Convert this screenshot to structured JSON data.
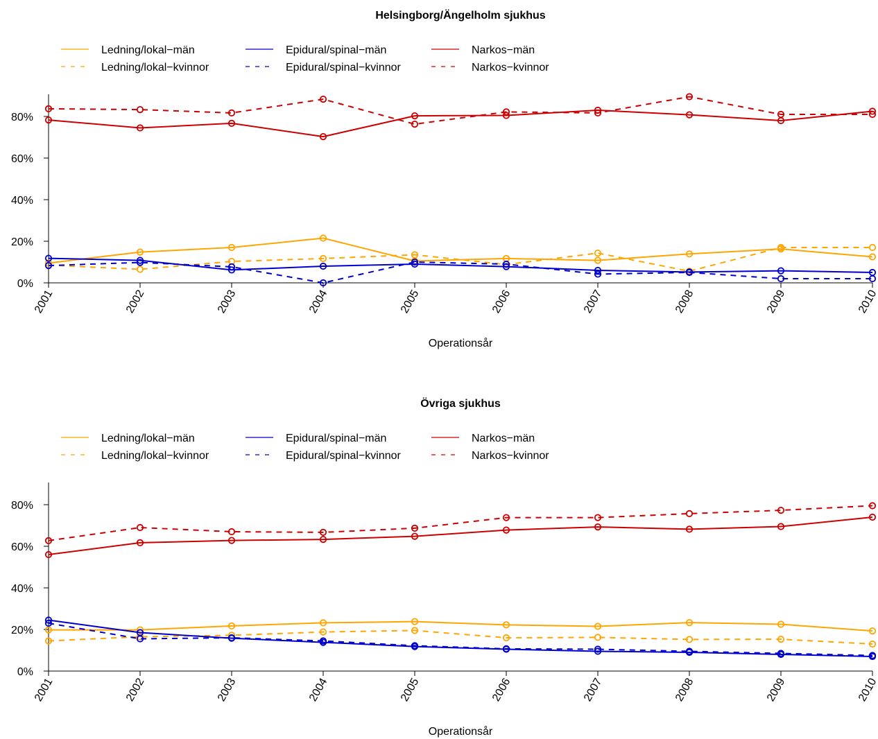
{
  "colors": {
    "ledning": "#FFA500",
    "epidural": "#0000CD",
    "narkos": "#CC0000",
    "axis": "#000000"
  },
  "chart_data": [
    {
      "type": "line",
      "title": "Helsingborg/Ängelholm sjukhus",
      "xlabel": "Operationsår",
      "ylabel": "",
      "categories": [
        "2001",
        "2002",
        "2003",
        "2004",
        "2005",
        "2006",
        "2007",
        "2008",
        "2009",
        "2010"
      ],
      "yticks": [
        "0%",
        "20%",
        "40%",
        "60%",
        "80%"
      ],
      "ylim": [
        0,
        90
      ],
      "grid": false,
      "legend_position": "top-left",
      "series": [
        {
          "name": "Ledning/lokal−män",
          "color_key": "ledning",
          "dash": false,
          "values": [
            9.5,
            14.8,
            17.0,
            21.5,
            10.5,
            11.7,
            10.8,
            13.9,
            16.3,
            12.5
          ]
        },
        {
          "name": "Ledning/lokal−kvinnor",
          "color_key": "ledning",
          "dash": true,
          "values": [
            8.5,
            6.5,
            10.3,
            11.7,
            13.5,
            8.8,
            14.3,
            5.6,
            17.0,
            17.0
          ]
        },
        {
          "name": "Epidural/spinal−män",
          "color_key": "epidural",
          "dash": false,
          "values": [
            11.8,
            10.8,
            6.2,
            8.0,
            9.0,
            7.8,
            6.0,
            5.2,
            5.8,
            5.0
          ]
        },
        {
          "name": "Epidural/spinal−kvinnor",
          "color_key": "epidural",
          "dash": true,
          "values": [
            8.3,
            9.8,
            7.7,
            0.0,
            10.0,
            9.0,
            4.2,
            5.0,
            2.0,
            2.0
          ]
        },
        {
          "name": "Narkos−män",
          "color_key": "narkos",
          "dash": false,
          "values": [
            78.3,
            74.5,
            76.7,
            70.3,
            80.3,
            80.5,
            83.0,
            80.8,
            78.0,
            82.5
          ]
        },
        {
          "name": "Narkos−kvinnor",
          "color_key": "narkos",
          "dash": true,
          "values": [
            83.7,
            83.3,
            81.7,
            88.3,
            76.3,
            82.2,
            81.7,
            89.5,
            81.0,
            81.0
          ]
        }
      ]
    },
    {
      "type": "line",
      "title": "Övriga sjukhus",
      "xlabel": "Operationsår",
      "ylabel": "",
      "categories": [
        "2001",
        "2002",
        "2003",
        "2004",
        "2005",
        "2006",
        "2007",
        "2008",
        "2009",
        "2010"
      ],
      "yticks": [
        "0%",
        "20%",
        "40%",
        "60%",
        "80%"
      ],
      "ylim": [
        0,
        90
      ],
      "grid": false,
      "legend_position": "top-left",
      "series": [
        {
          "name": "Ledning/lokal−män",
          "color_key": "ledning",
          "dash": false,
          "values": [
            19.8,
            19.8,
            21.7,
            23.2,
            23.8,
            22.2,
            21.5,
            23.3,
            22.5,
            19.3
          ]
        },
        {
          "name": "Ledning/lokal−kvinnor",
          "color_key": "ledning",
          "dash": true,
          "values": [
            14.5,
            16.5,
            17.2,
            18.8,
            19.5,
            16.0,
            16.2,
            15.2,
            15.3,
            13.0
          ]
        },
        {
          "name": "Epidural/spinal−män",
          "color_key": "epidural",
          "dash": false,
          "values": [
            24.5,
            18.5,
            15.8,
            13.8,
            11.8,
            10.5,
            9.5,
            9.0,
            8.0,
            7.0
          ]
        },
        {
          "name": "Epidural/spinal−kvinnor",
          "color_key": "epidural",
          "dash": true,
          "values": [
            23.0,
            15.5,
            16.0,
            14.5,
            12.2,
            10.7,
            10.5,
            9.5,
            8.5,
            7.5
          ]
        },
        {
          "name": "Narkos−män",
          "color_key": "narkos",
          "dash": false,
          "values": [
            56.0,
            61.7,
            62.8,
            63.3,
            64.8,
            67.8,
            69.3,
            68.2,
            69.5,
            74.0
          ]
        },
        {
          "name": "Narkos−kvinnor",
          "color_key": "narkos",
          "dash": true,
          "values": [
            62.7,
            69.0,
            67.0,
            66.7,
            68.7,
            73.8,
            73.8,
            75.7,
            77.3,
            79.5
          ]
        }
      ]
    }
  ]
}
